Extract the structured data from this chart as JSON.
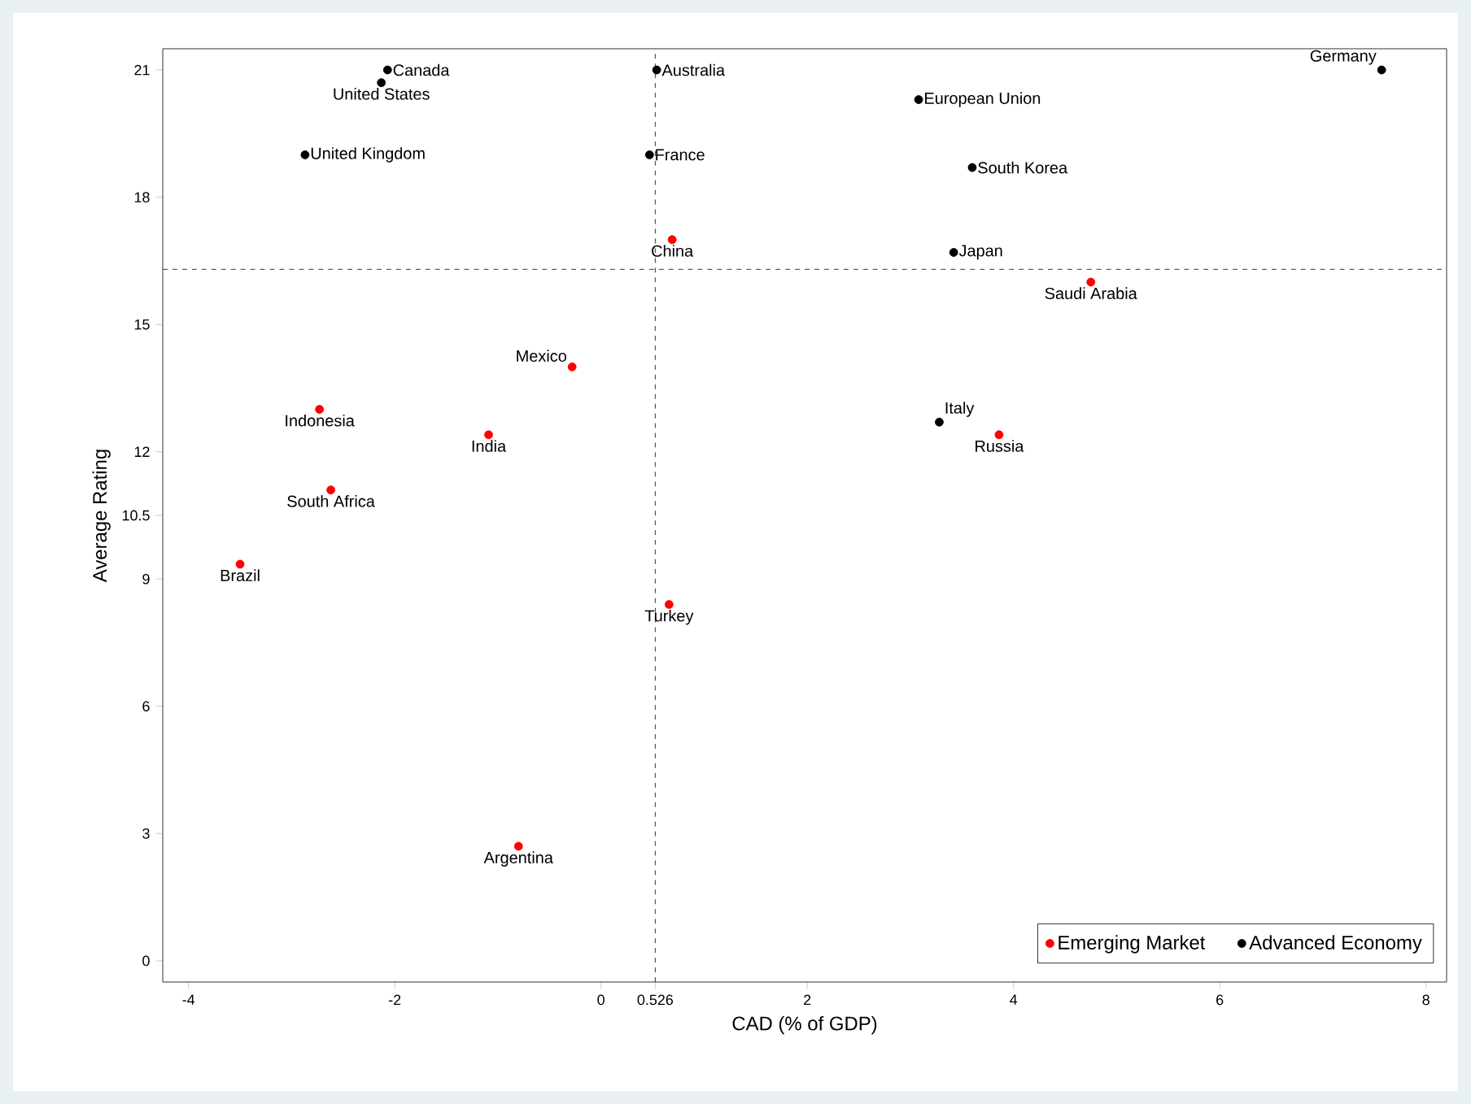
{
  "chart_data": {
    "type": "scatter",
    "xlabel": "CAD (% of GDP)",
    "ylabel": "Average Rating",
    "xlim": [
      -4.25,
      8.2
    ],
    "ylim": [
      -0.5,
      21.5
    ],
    "xticks": [
      -4,
      -2,
      0,
      0.526,
      2,
      4,
      6,
      8
    ],
    "yticks": [
      0,
      3,
      6,
      9,
      10.5,
      12,
      15,
      18,
      21
    ],
    "legend": "bottom right",
    "series": [
      {
        "name": "Emerging Market",
        "color": "#ff0000",
        "x": [
          0.69,
          4.75,
          -0.28,
          -2.73,
          -1.09,
          3.86,
          -2.62,
          -3.5,
          0.66,
          -0.8
        ],
        "values": [
          17.0,
          16.0,
          14.0,
          13.0,
          12.4,
          12.4,
          11.1,
          9.35,
          8.4,
          2.7
        ]
      },
      {
        "name": "Advanced Economy",
        "color": "#000000",
        "x": [
          -2.07,
          -2.13,
          0.54,
          7.57,
          3.08,
          -2.87,
          0.47,
          3.6,
          3.42,
          3.28
        ],
        "values": [
          21.0,
          20.7,
          21.0,
          21.0,
          20.3,
          19.0,
          19.0,
          18.7,
          16.7,
          12.7
        ]
      }
    ],
    "ref_lines": [
      {
        "axis": "x",
        "value": 0.526,
        "line_style": "dashed"
      },
      {
        "axis": "y",
        "value": 16.3,
        "line_style": "dashed"
      }
    ],
    "annotations": [
      {
        "text": "China",
        "x": 0.69,
        "y": 17.0
      },
      {
        "text": "Saudi Arabia",
        "x": 4.75,
        "y": 16.0
      },
      {
        "text": "Mexico",
        "x": -0.28,
        "y": 14.0
      },
      {
        "text": "Indonesia",
        "x": -2.73,
        "y": 13.0
      },
      {
        "text": "India",
        "x": -1.09,
        "y": 12.4
      },
      {
        "text": "Russia",
        "x": 3.86,
        "y": 12.4
      },
      {
        "text": "South Africa",
        "x": -2.62,
        "y": 11.1
      },
      {
        "text": "Brazil",
        "x": -3.5,
        "y": 9.35
      },
      {
        "text": "Turkey",
        "x": 0.66,
        "y": 8.4
      },
      {
        "text": "Argentina",
        "x": -0.8,
        "y": 2.7
      },
      {
        "text": "Canada",
        "x": -2.07,
        "y": 21.0
      },
      {
        "text": "United States",
        "x": -2.13,
        "y": 20.7
      },
      {
        "text": "Australia",
        "x": 0.54,
        "y": 21.0
      },
      {
        "text": "Germany",
        "x": 7.57,
        "y": 21.0
      },
      {
        "text": "European Union",
        "x": 3.08,
        "y": 20.3
      },
      {
        "text": "United Kingdom",
        "x": -2.87,
        "y": 19.0
      },
      {
        "text": "France",
        "x": 0.47,
        "y": 19.0
      },
      {
        "text": "South Korea",
        "x": 3.6,
        "y": 18.7
      },
      {
        "text": "Japan",
        "x": 3.42,
        "y": 16.7
      },
      {
        "text": "Italy",
        "x": 3.28,
        "y": 12.7
      }
    ]
  }
}
